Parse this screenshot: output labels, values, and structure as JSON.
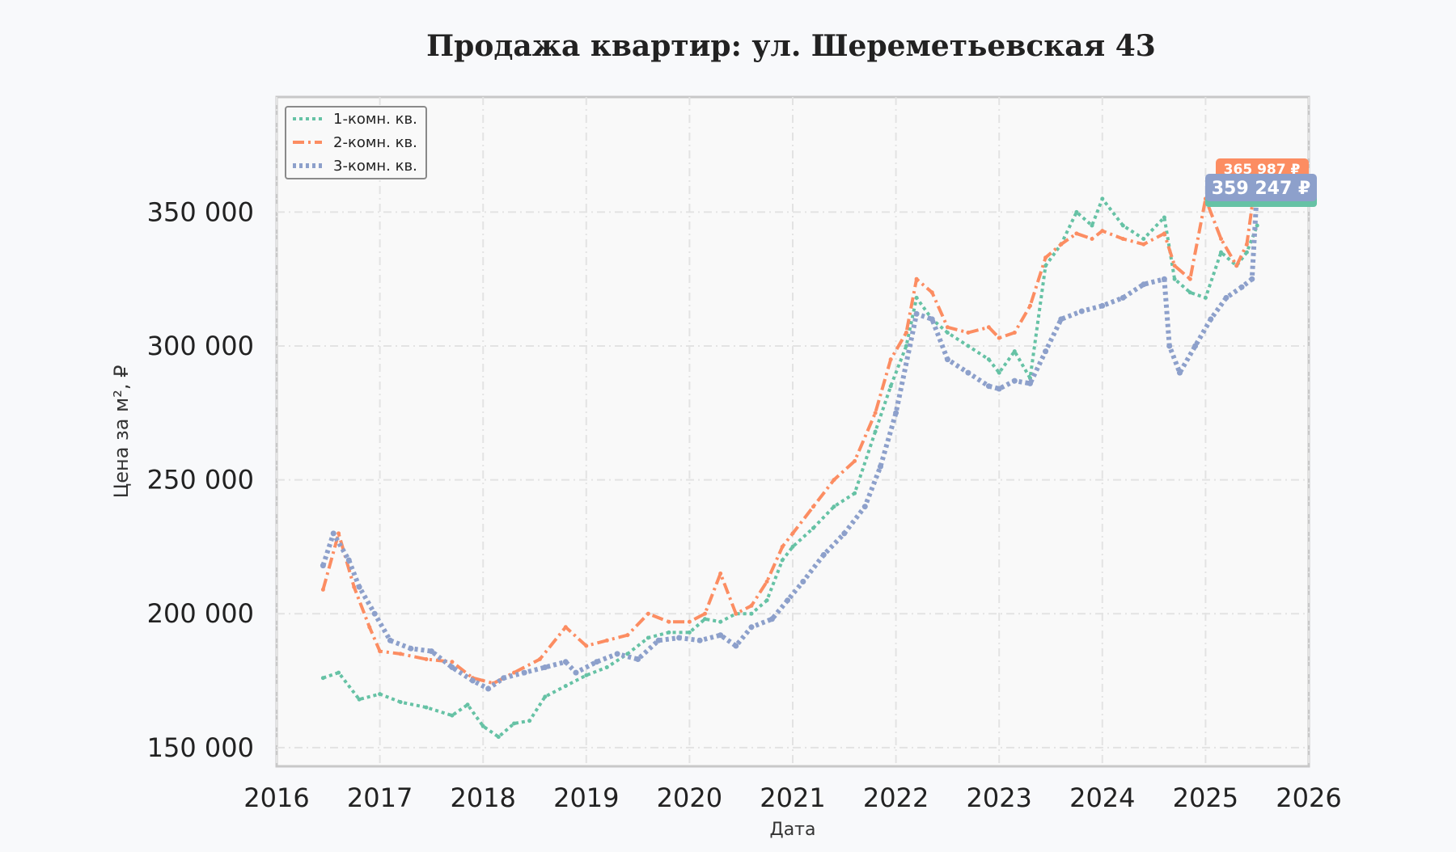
{
  "chart_data": {
    "type": "line",
    "title": "Продажа квартир: ул. Шереметьевская 43",
    "xlabel": "Дата",
    "ylabel": "Цена за м², ₽",
    "xlim": [
      2016,
      2026
    ],
    "ylim": [
      143000,
      393000
    ],
    "x_ticks": [
      "2016",
      "2017",
      "2018",
      "2019",
      "2020",
      "2021",
      "2022",
      "2023",
      "2024",
      "2025",
      "2026"
    ],
    "y_ticks": [
      "150 000",
      "200 000",
      "250 000",
      "300 000",
      "350 000"
    ],
    "y_tick_values": [
      150000,
      200000,
      250000,
      300000,
      350000
    ],
    "grid": true,
    "legend_position": "top-left",
    "series": [
      {
        "name": "1-комн. кв.",
        "color": "#66c2a5",
        "style": "dotted",
        "end_label": "",
        "points": [
          [
            2016.45,
            176000
          ],
          [
            2016.6,
            178000
          ],
          [
            2016.8,
            168000
          ],
          [
            2017.0,
            170000
          ],
          [
            2017.2,
            167000
          ],
          [
            2017.45,
            165000
          ],
          [
            2017.7,
            162000
          ],
          [
            2017.85,
            166000
          ],
          [
            2018.0,
            158000
          ],
          [
            2018.15,
            154000
          ],
          [
            2018.3,
            159000
          ],
          [
            2018.45,
            160000
          ],
          [
            2018.6,
            169000
          ],
          [
            2018.8,
            173000
          ],
          [
            2019.0,
            177000
          ],
          [
            2019.2,
            180000
          ],
          [
            2019.4,
            185000
          ],
          [
            2019.6,
            191000
          ],
          [
            2019.8,
            193000
          ],
          [
            2020.0,
            193000
          ],
          [
            2020.15,
            198000
          ],
          [
            2020.3,
            197000
          ],
          [
            2020.45,
            200000
          ],
          [
            2020.6,
            200000
          ],
          [
            2020.75,
            205000
          ],
          [
            2020.9,
            220000
          ],
          [
            2021.0,
            225000
          ],
          [
            2021.2,
            232000
          ],
          [
            2021.4,
            240000
          ],
          [
            2021.6,
            245000
          ],
          [
            2021.8,
            268000
          ],
          [
            2021.95,
            285000
          ],
          [
            2022.1,
            300000
          ],
          [
            2022.2,
            318000
          ],
          [
            2022.35,
            310000
          ],
          [
            2022.5,
            305000
          ],
          [
            2022.7,
            300000
          ],
          [
            2022.9,
            295000
          ],
          [
            2023.0,
            290000
          ],
          [
            2023.15,
            298000
          ],
          [
            2023.3,
            288000
          ],
          [
            2023.45,
            330000
          ],
          [
            2023.6,
            338000
          ],
          [
            2023.75,
            350000
          ],
          [
            2023.9,
            345000
          ],
          [
            2024.0,
            355000
          ],
          [
            2024.2,
            345000
          ],
          [
            2024.4,
            340000
          ],
          [
            2024.6,
            348000
          ],
          [
            2024.7,
            325000
          ],
          [
            2024.85,
            320000
          ],
          [
            2025.0,
            318000
          ],
          [
            2025.15,
            335000
          ],
          [
            2025.3,
            330000
          ],
          [
            2025.4,
            335000
          ],
          [
            2025.5,
            345000
          ]
        ]
      },
      {
        "name": "2-комн. кв.",
        "color": "#fc8d62",
        "style": "dashdot",
        "end_label": "365 987 ₽",
        "points": [
          [
            2016.45,
            209000
          ],
          [
            2016.6,
            230000
          ],
          [
            2016.75,
            210000
          ],
          [
            2016.9,
            195000
          ],
          [
            2017.0,
            186000
          ],
          [
            2017.2,
            185000
          ],
          [
            2017.45,
            183000
          ],
          [
            2017.7,
            182000
          ],
          [
            2017.9,
            176000
          ],
          [
            2018.1,
            174000
          ],
          [
            2018.3,
            178000
          ],
          [
            2018.55,
            183000
          ],
          [
            2018.8,
            195000
          ],
          [
            2019.0,
            188000
          ],
          [
            2019.2,
            190000
          ],
          [
            2019.4,
            192000
          ],
          [
            2019.6,
            200000
          ],
          [
            2019.8,
            197000
          ],
          [
            2020.0,
            197000
          ],
          [
            2020.15,
            200000
          ],
          [
            2020.3,
            215000
          ],
          [
            2020.45,
            200000
          ],
          [
            2020.6,
            203000
          ],
          [
            2020.75,
            212000
          ],
          [
            2020.9,
            225000
          ],
          [
            2021.0,
            230000
          ],
          [
            2021.2,
            240000
          ],
          [
            2021.4,
            250000
          ],
          [
            2021.6,
            257000
          ],
          [
            2021.8,
            275000
          ],
          [
            2021.95,
            295000
          ],
          [
            2022.1,
            305000
          ],
          [
            2022.2,
            325000
          ],
          [
            2022.35,
            320000
          ],
          [
            2022.5,
            307000
          ],
          [
            2022.7,
            305000
          ],
          [
            2022.9,
            307000
          ],
          [
            2023.0,
            303000
          ],
          [
            2023.15,
            305000
          ],
          [
            2023.3,
            315000
          ],
          [
            2023.45,
            333000
          ],
          [
            2023.6,
            338000
          ],
          [
            2023.75,
            342000
          ],
          [
            2023.9,
            340000
          ],
          [
            2024.0,
            343000
          ],
          [
            2024.2,
            340000
          ],
          [
            2024.4,
            338000
          ],
          [
            2024.6,
            342000
          ],
          [
            2024.7,
            330000
          ],
          [
            2024.85,
            325000
          ],
          [
            2025.0,
            355000
          ],
          [
            2025.15,
            340000
          ],
          [
            2025.3,
            330000
          ],
          [
            2025.4,
            338000
          ],
          [
            2025.5,
            365987
          ]
        ]
      },
      {
        "name": "3-комн. кв.",
        "color": "#8da0cb",
        "style": "dotted",
        "end_label": "359 247 ₽",
        "points": [
          [
            2016.45,
            218000
          ],
          [
            2016.55,
            230000
          ],
          [
            2016.7,
            220000
          ],
          [
            2016.8,
            210000
          ],
          [
            2016.95,
            200000
          ],
          [
            2017.1,
            190000
          ],
          [
            2017.3,
            187000
          ],
          [
            2017.5,
            186000
          ],
          [
            2017.7,
            180000
          ],
          [
            2017.9,
            175000
          ],
          [
            2018.05,
            172000
          ],
          [
            2018.2,
            176000
          ],
          [
            2018.4,
            178000
          ],
          [
            2018.6,
            180000
          ],
          [
            2018.8,
            182000
          ],
          [
            2018.9,
            178000
          ],
          [
            2019.1,
            182000
          ],
          [
            2019.3,
            185000
          ],
          [
            2019.5,
            183000
          ],
          [
            2019.7,
            190000
          ],
          [
            2019.9,
            191000
          ],
          [
            2020.1,
            190000
          ],
          [
            2020.3,
            192000
          ],
          [
            2020.45,
            188000
          ],
          [
            2020.6,
            195000
          ],
          [
            2020.8,
            198000
          ],
          [
            2020.95,
            205000
          ],
          [
            2021.1,
            212000
          ],
          [
            2021.3,
            222000
          ],
          [
            2021.5,
            230000
          ],
          [
            2021.7,
            240000
          ],
          [
            2021.85,
            255000
          ],
          [
            2022.0,
            275000
          ],
          [
            2022.2,
            312000
          ],
          [
            2022.35,
            310000
          ],
          [
            2022.5,
            295000
          ],
          [
            2022.7,
            290000
          ],
          [
            2022.9,
            285000
          ],
          [
            2023.0,
            284000
          ],
          [
            2023.15,
            287000
          ],
          [
            2023.3,
            286000
          ],
          [
            2023.45,
            298000
          ],
          [
            2023.6,
            310000
          ],
          [
            2023.8,
            313000
          ],
          [
            2024.0,
            315000
          ],
          [
            2024.2,
            318000
          ],
          [
            2024.4,
            323000
          ],
          [
            2024.6,
            325000
          ],
          [
            2024.65,
            300000
          ],
          [
            2024.75,
            290000
          ],
          [
            2024.9,
            300000
          ],
          [
            2025.05,
            310000
          ],
          [
            2025.2,
            318000
          ],
          [
            2025.35,
            322000
          ],
          [
            2025.45,
            325000
          ],
          [
            2025.5,
            359247
          ]
        ]
      }
    ]
  }
}
